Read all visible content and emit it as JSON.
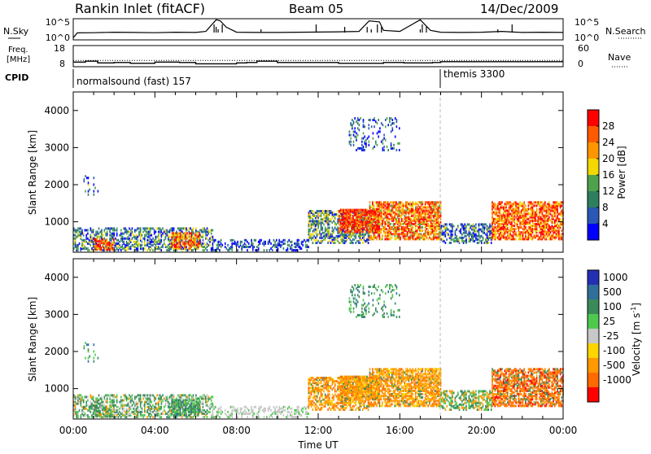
{
  "header": {
    "station": "Rankin Inlet (fitACF)",
    "beam": "Beam 05",
    "date": "14/Dec/2009"
  },
  "panel_labels": {
    "nsky": "N.Sky",
    "nsearch": "N.Search",
    "freq_line1": "Freq.",
    "freq_line2": "[MHz]",
    "nave": "Nave",
    "cpid": "CPID"
  },
  "cpid_programs": [
    {
      "name": "normalsound (fast) 157",
      "start_hour": 0
    },
    {
      "name": "themis 3300",
      "start_hour": 18
    }
  ],
  "colors": {
    "power": [
      "#0000ff",
      "#2a58b4",
      "#2e7f5e",
      "#4ea24c",
      "#f2d800",
      "#ff9600",
      "#ff5a00",
      "#ff0000"
    ],
    "velocity": [
      "#ff0000",
      "#ff6a00",
      "#ff9900",
      "#ffd500",
      "#c8c8c8",
      "#4ec94e",
      "#3a8a5a",
      "#2f6f9a",
      "#2430b4"
    ],
    "ground_scatter": "#c8c8c8"
  },
  "chart_data": [
    {
      "name": "nsky-nsearch",
      "type": "line",
      "x_label": "",
      "y_ticks_left": [
        "10^5",
        "10^0"
      ],
      "y_ticks_right": [
        "10^5",
        "10^0"
      ],
      "xlim": [
        0,
        24
      ],
      "x": [
        0,
        0.2,
        1,
        2,
        3,
        4,
        5,
        6,
        6.5,
        7,
        7.2,
        7.5,
        8,
        9,
        10,
        11,
        12,
        13,
        14,
        14.5,
        15,
        15.2,
        16,
        17,
        17.5,
        18,
        19,
        20,
        21,
        22,
        23,
        24
      ],
      "values": [
        0.1,
        0.33,
        0.34,
        0.36,
        0.35,
        0.34,
        0.36,
        0.35,
        0.4,
        0.95,
        0.9,
        0.6,
        0.36,
        0.35,
        0.35,
        0.36,
        0.37,
        0.38,
        0.4,
        0.9,
        0.85,
        0.45,
        0.4,
        0.95,
        0.45,
        0.36,
        0.35,
        0.36,
        0.4,
        0.35,
        0.36,
        0.35
      ]
    },
    {
      "name": "freq-nave",
      "type": "line",
      "y_ticks_left": [
        "18",
        "8"
      ],
      "y_ticks_right": [
        "60",
        "0"
      ],
      "xlim": [
        0,
        24
      ],
      "freq_steps": [
        {
          "x": 0,
          "y": 10.2
        },
        {
          "x": 0.6,
          "y": 10.6
        },
        {
          "x": 1.2,
          "y": 9.8
        },
        {
          "x": 2.0,
          "y": 10.0
        },
        {
          "x": 2.8,
          "y": 9.6
        },
        {
          "x": 4.0,
          "y": 10.2
        },
        {
          "x": 5.2,
          "y": 10.0
        },
        {
          "x": 6.0,
          "y": 9.4
        },
        {
          "x": 8.0,
          "y": 9.8
        },
        {
          "x": 8.5,
          "y": 10.0
        },
        {
          "x": 9.0,
          "y": 10.6
        },
        {
          "x": 10.0,
          "y": 10.0
        },
        {
          "x": 12.0,
          "y": 10.0
        },
        {
          "x": 13.0,
          "y": 9.6
        },
        {
          "x": 15.2,
          "y": 10.0
        },
        {
          "x": 16.2,
          "y": 9.8
        },
        {
          "x": 17.6,
          "y": 10.0
        },
        {
          "x": 18.0,
          "y": 10.4
        },
        {
          "x": 24,
          "y": 10.4
        }
      ],
      "nave_dotted": 11.0
    },
    {
      "name": "power",
      "type": "heatmap",
      "ylabel": "Slant Range [km]",
      "xlim": [
        0,
        24
      ],
      "ylim": [
        180,
        4500
      ],
      "y_ticks": [
        1000,
        2000,
        3000,
        4000
      ],
      "colorbar_label": "Power [dB]",
      "colorbar_ticks": [
        "4",
        "8",
        "12",
        "16",
        "20",
        "24",
        "28"
      ]
    },
    {
      "name": "velocity",
      "type": "heatmap",
      "xlabel": "Time UT",
      "ylabel": "Slant Range [km]",
      "xlim": [
        0,
        24
      ],
      "ylim": [
        180,
        4500
      ],
      "x_ticks": [
        "00:00",
        "04:00",
        "08:00",
        "12:00",
        "16:00",
        "20:00",
        "00:00"
      ],
      "y_ticks": [
        1000,
        2000,
        3000,
        4000
      ],
      "colorbar_label": "Velocity [m s^-1]",
      "colorbar_ticks": [
        "1000",
        "500",
        "100",
        "25",
        "-25",
        "-100",
        "-500",
        "-1000"
      ]
    }
  ]
}
